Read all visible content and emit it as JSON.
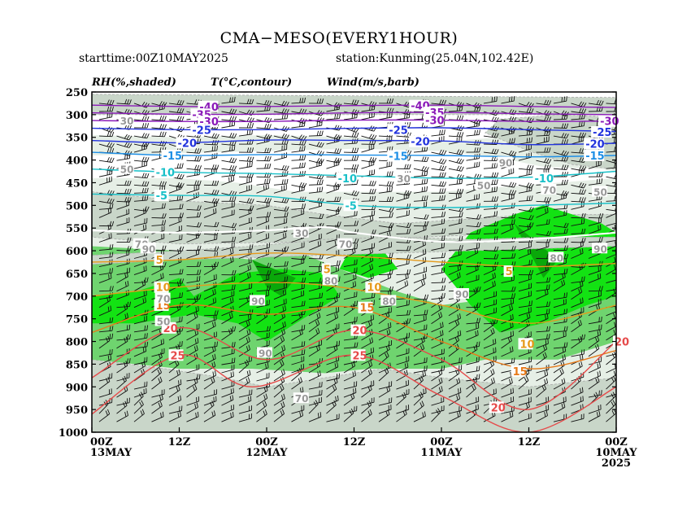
{
  "header": {
    "title": "CMA−MESO(EVERY1HOUR)",
    "starttime": "starttime:00Z10MAY2025",
    "station": "station:Kunming(25.04N,102.42E)"
  },
  "legend": {
    "rh": "RH(%,shaded)",
    "temp": "T(°C,contour)",
    "wind": "Wind(m/s,barb)"
  },
  "chart_data": {
    "type": "time-height cross-section",
    "y_axis": {
      "unit": "hPa",
      "ticks": [
        250,
        300,
        350,
        400,
        450,
        500,
        550,
        600,
        650,
        700,
        750,
        800,
        850,
        900,
        950,
        1000
      ],
      "range": [
        1000,
        250
      ]
    },
    "x_axis": {
      "direction": "reversed (time increases to the left)",
      "hours_from_start_ticks": [
        72,
        60,
        48,
        36,
        24,
        12,
        0
      ],
      "ticks": [
        {
          "hour": 72,
          "line1": "00Z",
          "line2": "13MAY",
          "line3": ""
        },
        {
          "hour": 60,
          "line1": "12Z",
          "line2": "",
          "line3": ""
        },
        {
          "hour": 48,
          "line1": "00Z",
          "line2": "12MAY",
          "line3": ""
        },
        {
          "hour": 36,
          "line1": "12Z",
          "line2": "",
          "line3": ""
        },
        {
          "hour": 24,
          "line1": "00Z",
          "line2": "11MAY",
          "line3": ""
        },
        {
          "hour": 12,
          "line1": "12Z",
          "line2": "",
          "line3": ""
        },
        {
          "hour": 0,
          "line1": "00Z",
          "line2": "10MAY",
          "line3": "2025"
        }
      ]
    },
    "rh_shading_colors": {
      "below_30": "#ffffff",
      "30_50": "#e6efe6",
      "50_70": "#c9d6c9",
      "70_90": "#6fd46f",
      "above_90": "#13e213",
      "core": "#0aa80a"
    },
    "temperature_contours": [
      {
        "value": -40,
        "color": "#8a19b8",
        "points": [
          [
            72,
            279
          ],
          [
            60,
            282
          ],
          [
            48,
            282
          ],
          [
            36,
            280
          ],
          [
            24,
            279
          ],
          [
            12,
            282
          ],
          [
            0,
            284
          ]
        ],
        "labels": [
          [
            57,
            282
          ],
          [
            28,
            280
          ]
        ]
      },
      {
        "value": -35,
        "color": "#8a19b8",
        "points": [
          [
            72,
            296
          ],
          [
            60,
            299
          ],
          [
            48,
            299
          ],
          [
            36,
            296
          ],
          [
            24,
            295
          ],
          [
            12,
            298
          ],
          [
            0,
            300
          ]
        ],
        "labels": [
          [
            58,
            299
          ],
          [
            26,
            295
          ]
        ]
      },
      {
        "value": -30,
        "color": "#8a19b8",
        "points": [
          [
            72,
            313
          ],
          [
            60,
            315
          ],
          [
            48,
            315
          ],
          [
            36,
            312
          ],
          [
            24,
            312
          ],
          [
            12,
            315
          ],
          [
            0,
            314
          ]
        ],
        "labels": [
          [
            57,
            315
          ],
          [
            26,
            312
          ],
          [
            2,
            314
          ]
        ]
      },
      {
        "value": -25,
        "color": "#2233dd",
        "points": [
          [
            72,
            330
          ],
          [
            60,
            333
          ],
          [
            48,
            333
          ],
          [
            36,
            330
          ],
          [
            24,
            329
          ],
          [
            12,
            333
          ],
          [
            0,
            337
          ]
        ],
        "labels": [
          [
            58,
            333
          ],
          [
            31,
            333
          ],
          [
            3,
            338
          ]
        ]
      },
      {
        "value": -20,
        "color": "#2233dd",
        "points": [
          [
            72,
            357
          ],
          [
            60,
            362
          ],
          [
            48,
            356
          ],
          [
            36,
            357
          ],
          [
            24,
            358
          ],
          [
            12,
            366
          ],
          [
            0,
            363
          ]
        ],
        "labels": [
          [
            60,
            362
          ],
          [
            28,
            359
          ],
          [
            4,
            364
          ]
        ]
      },
      {
        "value": -15,
        "color": "#1e8fe6",
        "points": [
          [
            72,
            383
          ],
          [
            60,
            390
          ],
          [
            48,
            388
          ],
          [
            36,
            389
          ],
          [
            24,
            390
          ],
          [
            12,
            393
          ],
          [
            0,
            390
          ]
        ],
        "labels": [
          [
            62,
            390
          ],
          [
            31,
            391
          ],
          [
            4,
            390
          ]
        ]
      },
      {
        "value": -10,
        "color": "#18c0c8",
        "points": [
          [
            72,
            420
          ],
          [
            60,
            427
          ],
          [
            48,
            430
          ],
          [
            36,
            435
          ],
          [
            24,
            440
          ],
          [
            12,
            438
          ],
          [
            0,
            425
          ]
        ],
        "labels": [
          [
            63,
            427
          ],
          [
            38,
            440
          ],
          [
            11,
            440
          ]
        ]
      },
      {
        "value": -5,
        "color": "#18c0c8",
        "points": [
          [
            72,
            475
          ],
          [
            60,
            478
          ],
          [
            48,
            480
          ],
          [
            36,
            500
          ],
          [
            24,
            505
          ],
          [
            12,
            500
          ],
          [
            0,
            495
          ]
        ],
        "labels": [
          [
            63,
            478
          ],
          [
            37,
            500
          ]
        ]
      },
      {
        "value": 0,
        "color": "#ffffff",
        "points": [
          [
            72,
            555
          ],
          [
            60,
            560
          ],
          [
            48,
            555
          ],
          [
            40,
            548
          ],
          [
            36,
            560
          ],
          [
            24,
            580
          ],
          [
            12,
            575
          ],
          [
            0,
            560
          ]
        ],
        "labels": []
      },
      {
        "value": 5,
        "color": "#e69a1a",
        "points": [
          [
            72,
            625
          ],
          [
            60,
            620
          ],
          [
            48,
            605
          ],
          [
            36,
            612
          ],
          [
            24,
            625
          ],
          [
            12,
            635
          ],
          [
            0,
            628
          ]
        ],
        "labels": [
          [
            63,
            620
          ],
          [
            40,
            640
          ],
          [
            15,
            645
          ]
        ]
      },
      {
        "value": 10,
        "color": "#e69a1a",
        "points": [
          [
            72,
            700
          ],
          [
            60,
            680
          ],
          [
            48,
            670
          ],
          [
            38,
            680
          ],
          [
            24,
            720
          ],
          [
            12,
            760
          ],
          [
            0,
            720
          ]
        ],
        "labels": [
          [
            63,
            680
          ],
          [
            34,
            680
          ],
          [
            13,
            805
          ]
        ]
      },
      {
        "value": 15,
        "color": "#e67a1a",
        "points": [
          [
            72,
            780
          ],
          [
            60,
            720
          ],
          [
            48,
            740
          ],
          [
            36,
            725
          ],
          [
            24,
            800
          ],
          [
            12,
            860
          ],
          [
            0,
            820
          ]
        ],
        "labels": [
          [
            63,
            720
          ],
          [
            35,
            725
          ],
          [
            14,
            865
          ]
        ]
      },
      {
        "value": 20,
        "color": "#e64a4a",
        "points": [
          [
            72,
            880
          ],
          [
            60,
            770
          ],
          [
            48,
            840
          ],
          [
            36,
            775
          ],
          [
            24,
            840
          ],
          [
            12,
            950
          ],
          [
            0,
            800
          ]
        ],
        "labels": [
          [
            62,
            770
          ],
          [
            36,
            775
          ],
          [
            17,
            945
          ],
          [
            0,
            800
          ]
        ]
      },
      {
        "value": 25,
        "color": "#e64a4a",
        "points": [
          [
            72,
            960
          ],
          [
            60,
            830
          ],
          [
            50,
            900
          ],
          [
            36,
            830
          ],
          [
            24,
            920
          ],
          [
            12,
            1000
          ],
          [
            0,
            900
          ]
        ],
        "labels": [
          [
            61,
            830
          ],
          [
            36,
            830
          ]
        ]
      }
    ],
    "rh_labels": [
      {
        "value": 30,
        "hour": 68,
        "p": 313,
        "color": "#999999"
      },
      {
        "value": 30,
        "hour": 44,
        "p": 560,
        "color": "#999999"
      },
      {
        "value": 30,
        "hour": 30,
        "p": 440,
        "color": "#999999"
      },
      {
        "value": 50,
        "hour": 68,
        "p": 420,
        "color": "#999999"
      },
      {
        "value": 50,
        "hour": 19,
        "p": 455,
        "color": "#999999"
      },
      {
        "value": 50,
        "hour": 3,
        "p": 470,
        "color": "#999999"
      },
      {
        "value": 50,
        "hour": 63,
        "p": 755,
        "color": "#999999"
      },
      {
        "value": 70,
        "hour": 66,
        "p": 585,
        "color": "#999999"
      },
      {
        "value": 70,
        "hour": 63,
        "p": 705,
        "color": "#999999"
      },
      {
        "value": 70,
        "hour": 38,
        "p": 585,
        "color": "#999999"
      },
      {
        "value": 70,
        "hour": 10,
        "p": 465,
        "color": "#999999"
      },
      {
        "value": 70,
        "hour": 44,
        "p": 925,
        "color": "#999999"
      },
      {
        "value": 80,
        "hour": 40,
        "p": 665,
        "color": "#999999"
      },
      {
        "value": 80,
        "hour": 32,
        "p": 710,
        "color": "#999999"
      },
      {
        "value": 80,
        "hour": 9,
        "p": 615,
        "color": "#999999"
      },
      {
        "value": 90,
        "hour": 65,
        "p": 595,
        "color": "#999999"
      },
      {
        "value": 90,
        "hour": 50,
        "p": 710,
        "color": "#999999"
      },
      {
        "value": 90,
        "hour": 49,
        "p": 825,
        "color": "#999999"
      },
      {
        "value": 90,
        "hour": 16,
        "p": 405,
        "color": "#999999"
      },
      {
        "value": 90,
        "hour": 22,
        "p": 695,
        "color": "#999999"
      },
      {
        "value": 90,
        "hour": 3,
        "p": 595,
        "color": "#999999"
      }
    ]
  }
}
